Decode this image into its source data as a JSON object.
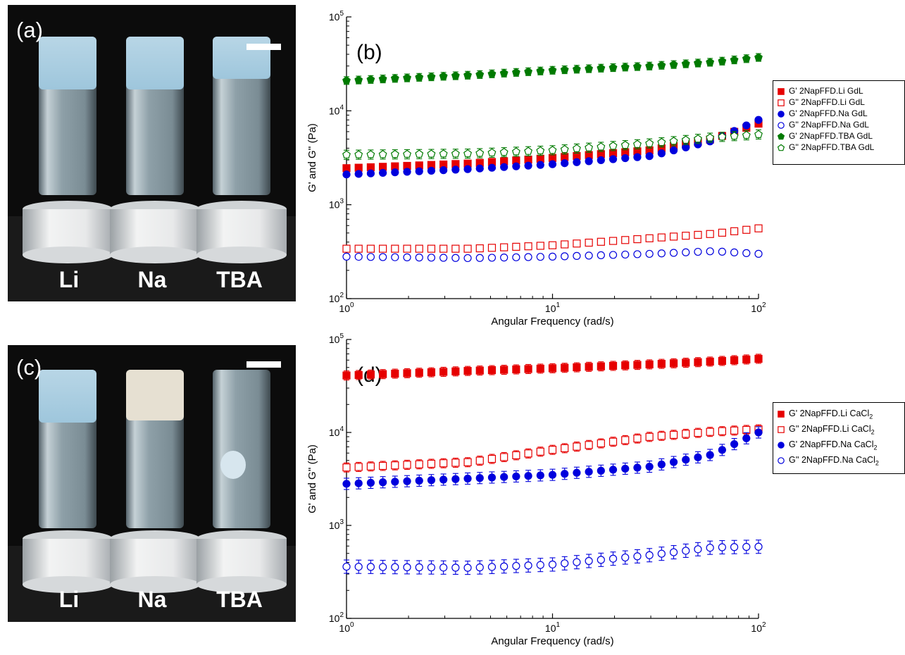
{
  "photos": [
    {
      "label": "(a)",
      "vials": [
        "Li",
        "Na",
        "TBA"
      ]
    },
    {
      "label": "(c)",
      "vials": [
        "Li",
        "Na",
        "TBA"
      ]
    }
  ],
  "colors": {
    "red": "#e60000",
    "blue": "#0000dd",
    "green": "#007a00"
  },
  "chart_data": [
    {
      "type": "scatter",
      "panel_label": "(b)",
      "xlabel": "Angular Frequency (rad/s)",
      "ylabel": "G' and G'' (Pa)",
      "x_scale": "log",
      "y_scale": "log",
      "xlim": [
        1,
        100
      ],
      "ylim": [
        100,
        100000
      ],
      "x_ticks": [
        1,
        10,
        100
      ],
      "y_ticks": [
        100,
        1000,
        10000,
        100000
      ],
      "legend_position": "right",
      "series": [
        {
          "name": "G' 2NapFFD.Li GdL",
          "marker": "square",
          "filled": true,
          "color": "#e60000",
          "x_range": [
            1,
            100
          ],
          "values": [
            [
              1,
              2450
            ],
            [
              4,
              2750
            ],
            [
              10,
              3150
            ],
            [
              30,
              3800
            ],
            [
              60,
              5000
            ],
            [
              100,
              7300
            ]
          ],
          "err": 0.06
        },
        {
          "name": "G'' 2NapFFD.Li GdL",
          "marker": "square",
          "filled": false,
          "color": "#e60000",
          "x_range": [
            1,
            100
          ],
          "values": [
            [
              1,
              340
            ],
            [
              4,
              340
            ],
            [
              10,
              370
            ],
            [
              30,
              440
            ],
            [
              60,
              490
            ],
            [
              100,
              560
            ]
          ],
          "err": 0.07
        },
        {
          "name": "G' 2NapFFD.Na GdL",
          "marker": "circle",
          "filled": true,
          "color": "#0000dd",
          "x_range": [
            1,
            100
          ],
          "values": [
            [
              1,
              2100
            ],
            [
              4,
              2400
            ],
            [
              10,
              2700
            ],
            [
              30,
              3300
            ],
            [
              60,
              4800
            ],
            [
              100,
              8000
            ]
          ],
          "err": 0.04
        },
        {
          "name": "G'' 2NapFFD.Na GdL",
          "marker": "circle",
          "filled": false,
          "color": "#0000dd",
          "x_range": [
            1,
            100
          ],
          "values": [
            [
              1,
              280
            ],
            [
              4,
              270
            ],
            [
              10,
              280
            ],
            [
              30,
              300
            ],
            [
              60,
              320
            ],
            [
              100,
              300
            ]
          ],
          "err": 0.05
        },
        {
          "name": "G' 2NapFFD.TBA GdL",
          "marker": "pentagon",
          "filled": true,
          "color": "#007a00",
          "x_range": [
            1,
            100
          ],
          "values": [
            [
              1,
              21000
            ],
            [
              4,
              24000
            ],
            [
              10,
              27000
            ],
            [
              30,
              30000
            ],
            [
              60,
              33000
            ],
            [
              100,
              37000
            ]
          ],
          "err": 0.1
        },
        {
          "name": "G'' 2NapFFD.TBA GdL",
          "marker": "pentagon",
          "filled": false,
          "color": "#007a00",
          "x_range": [
            1,
            100
          ],
          "values": [
            [
              1,
              3400
            ],
            [
              4,
              3500
            ],
            [
              10,
              3800
            ],
            [
              30,
              4500
            ],
            [
              60,
              5200
            ],
            [
              100,
              5600
            ]
          ],
          "err": 0.12
        }
      ]
    },
    {
      "type": "scatter",
      "panel_label": "(d)",
      "xlabel": "Angular Frequency (rad/s)",
      "ylabel": "G' and G'' (Pa)",
      "x_scale": "log",
      "y_scale": "log",
      "xlim": [
        1,
        100
      ],
      "ylim": [
        100,
        100000
      ],
      "x_ticks": [
        1,
        10,
        100
      ],
      "y_ticks": [
        100,
        1000,
        10000,
        100000
      ],
      "legend_position": "right",
      "series": [
        {
          "name": "G' 2NapFFD.Li CaCl2",
          "marker": "square",
          "filled": true,
          "color": "#e60000",
          "x_range": [
            1,
            100
          ],
          "values": [
            [
              1,
              41000
            ],
            [
              4,
              46000
            ],
            [
              10,
              49000
            ],
            [
              30,
              54000
            ],
            [
              60,
              58000
            ],
            [
              100,
              62000
            ]
          ],
          "err": 0.12
        },
        {
          "name": "G'' 2NapFFD.Li CaCl2",
          "marker": "square",
          "filled": false,
          "color": "#e60000",
          "x_range": [
            1,
            100
          ],
          "values": [
            [
              1,
              4200
            ],
            [
              4,
              4800
            ],
            [
              10,
              6500
            ],
            [
              30,
              9000
            ],
            [
              60,
              10200
            ],
            [
              100,
              10800
            ]
          ],
          "err": 0.12
        },
        {
          "name": "G' 2NapFFD.Na CaCl2",
          "marker": "circle",
          "filled": true,
          "color": "#0000dd",
          "x_range": [
            1,
            100
          ],
          "values": [
            [
              1,
              2800
            ],
            [
              4,
              3200
            ],
            [
              10,
              3500
            ],
            [
              30,
              4300
            ],
            [
              60,
              5800
            ],
            [
              100,
              10000
            ]
          ],
          "err": 0.15
        },
        {
          "name": "G'' 2NapFFD.Na CaCl2",
          "marker": "circle",
          "filled": false,
          "color": "#0000dd",
          "x_range": [
            1,
            100
          ],
          "values": [
            [
              1,
              360
            ],
            [
              4,
              350
            ],
            [
              10,
              380
            ],
            [
              30,
              480
            ],
            [
              60,
              580
            ],
            [
              100,
              590
            ]
          ],
          "err": 0.18
        }
      ]
    }
  ]
}
